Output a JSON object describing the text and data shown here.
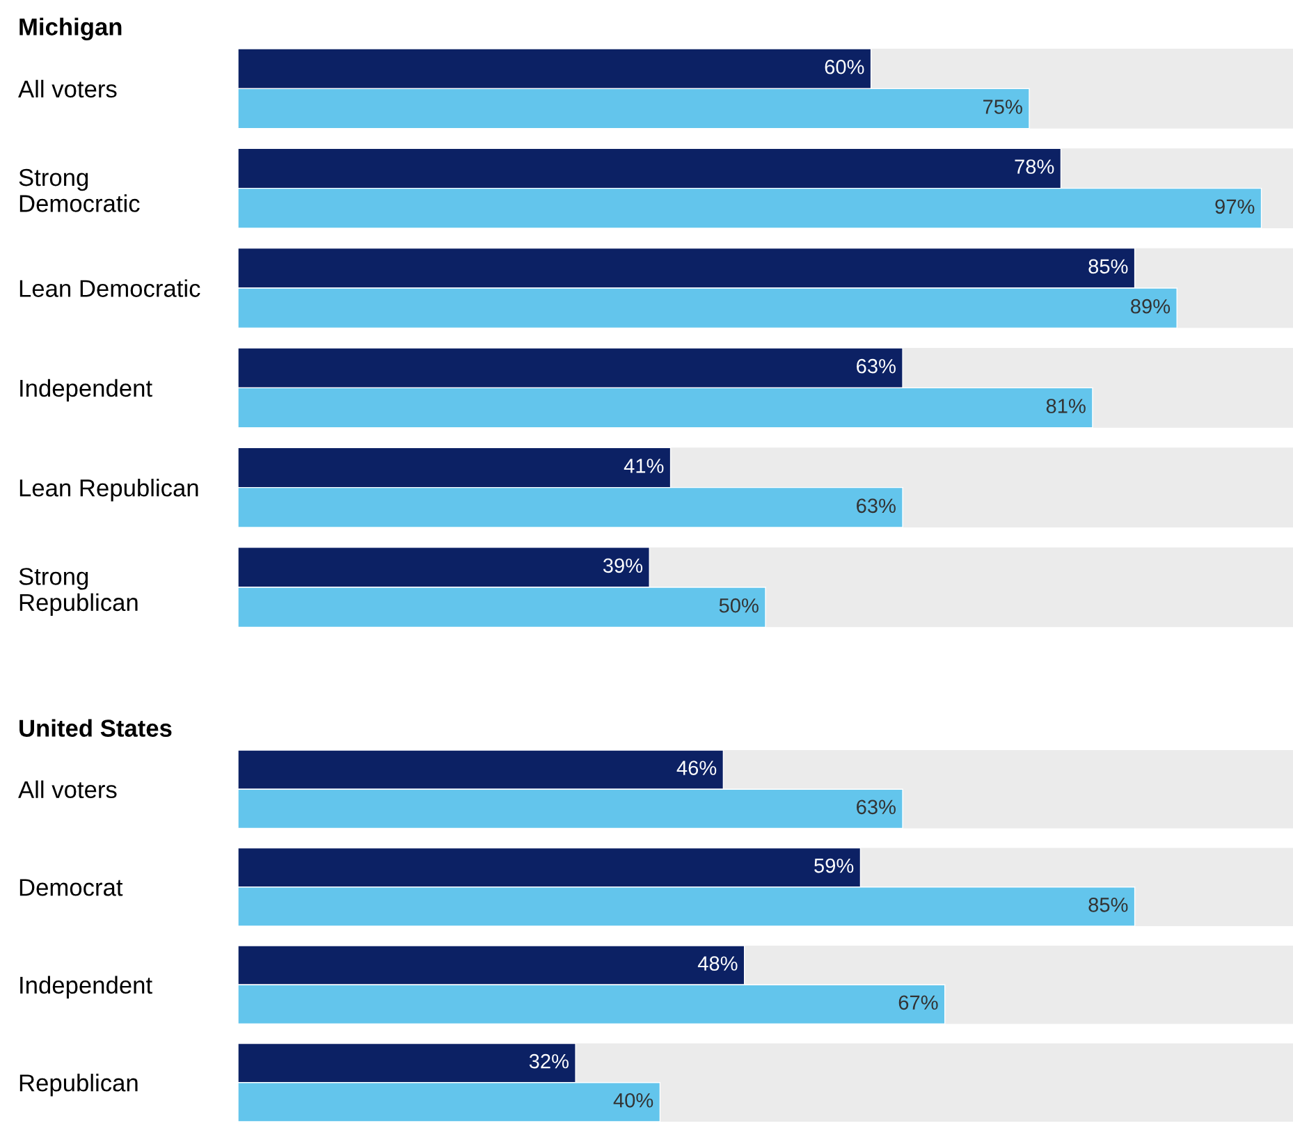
{
  "chart_data": [
    {
      "type": "bar",
      "orientation": "horizontal",
      "title": "Michigan",
      "categories": [
        "All voters",
        "Strong\nDemocratic",
        "Lean Democratic",
        "Independent",
        "Lean Republican",
        "Strong\nRepublican"
      ],
      "series": [
        {
          "color": "#0c2164",
          "values": [
            60,
            78,
            85,
            63,
            41,
            39
          ],
          "value_labels": [
            "60%",
            "78%",
            "85%",
            "63%",
            "41%",
            "39%"
          ]
        },
        {
          "color": "#63c5ec",
          "values": [
            75,
            97,
            89,
            81,
            63,
            50
          ],
          "value_labels": [
            "75%",
            "97%",
            "89%",
            "81%",
            "63%",
            "50%"
          ]
        }
      ],
      "xlim": [
        0,
        100
      ],
      "bands": [
        {
          "axis": "x",
          "from": 0,
          "to": 100,
          "color": "#ebebeb"
        },
        {
          "axis": "x",
          "from": 0,
          "to": 100,
          "color": "#ebebeb"
        },
        {
          "axis": "x",
          "from": 0,
          "to": 100,
          "color": "#ebebeb"
        },
        {
          "axis": "x",
          "from": 0,
          "to": 100,
          "color": "#ebebeb"
        },
        {
          "axis": "x",
          "from": 0,
          "to": 100,
          "color": "#ebebeb"
        },
        {
          "axis": "x",
          "from": 0,
          "to": 100,
          "color": "#ebebeb"
        }
      ],
      "tick_labels": "y",
      "legend": false
    },
    {
      "type": "bar",
      "orientation": "horizontal",
      "title": "United States",
      "categories": [
        "All voters",
        "Democrat",
        "Independent",
        "Republican"
      ],
      "series": [
        {
          "color": "#0c2164",
          "values": [
            46,
            59,
            48,
            32
          ],
          "value_labels": [
            "46%",
            "59%",
            "48%",
            "32%"
          ]
        },
        {
          "color": "#63c5ec",
          "values": [
            63,
            85,
            67,
            40
          ],
          "value_labels": [
            "63%",
            "85%",
            "67%",
            "40%"
          ]
        }
      ],
      "xlim": [
        0,
        100
      ],
      "bands": [
        {
          "axis": "x",
          "from": 0,
          "to": 100,
          "color": "#ebebeb"
        },
        {
          "axis": "x",
          "from": 0,
          "to": 100,
          "color": "#ebebeb"
        },
        {
          "axis": "x",
          "from": 0,
          "to": 100,
          "color": "#ebebeb"
        },
        {
          "axis": "x",
          "from": 0,
          "to": 100,
          "color": "#ebebeb"
        }
      ],
      "tick_labels": "y",
      "legend": false
    }
  ]
}
